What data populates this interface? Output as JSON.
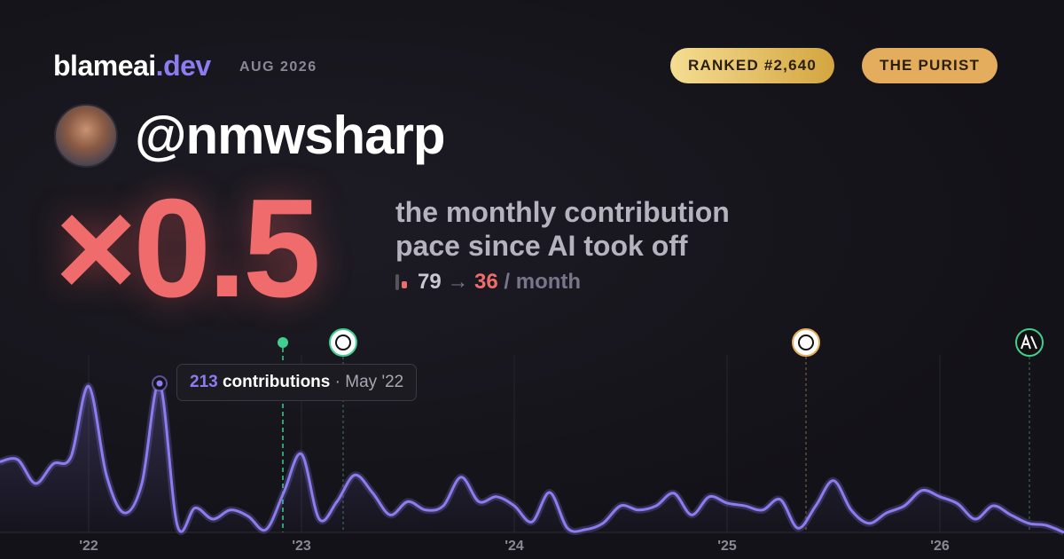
{
  "header": {
    "brand": "blameai",
    "brand_tld": ".dev",
    "date": "AUG 2026",
    "badges": [
      "RANKED #2,640",
      "THE PURIST"
    ],
    "handle": "@nmwsharp"
  },
  "stat": {
    "multiplier": "×0.5",
    "description": [
      "the monthly contribution",
      "pace since AI took off"
    ],
    "before": "79",
    "arrow": "→",
    "after": "36",
    "unit": "/ month"
  },
  "chart_data": {
    "type": "line",
    "color": "#8b7cf0",
    "categories": [
      null,
      null,
      null,
      null,
      null,
      "'22",
      null,
      null,
      null,
      null,
      null,
      null,
      null,
      null,
      null,
      null,
      null,
      "'23",
      null,
      null,
      null,
      null,
      null,
      null,
      null,
      null,
      null,
      null,
      null,
      "'24",
      null,
      null,
      null,
      null,
      null,
      null,
      null,
      null,
      null,
      null,
      null,
      "'25",
      null,
      null,
      null,
      null,
      null,
      null,
      null,
      null,
      null,
      null,
      null,
      "'26",
      null,
      null,
      null,
      null,
      null,
      null,
      null
    ],
    "values": [
      101,
      104,
      70,
      98,
      108,
      209,
      82,
      28,
      70,
      213,
      10,
      35,
      19,
      32,
      23,
      4,
      57,
      112,
      19,
      44,
      82,
      57,
      25,
      44,
      32,
      38,
      79,
      44,
      51,
      38,
      15,
      57,
      6,
      4,
      13,
      38,
      32,
      38,
      56,
      25,
      51,
      42,
      38,
      32,
      47,
      6,
      38,
      74,
      32,
      13,
      28,
      38,
      60,
      51,
      41,
      19,
      38,
      25,
      13,
      10,
      0
    ],
    "ylim": [
      0,
      250
    ],
    "tooltip": {
      "label": "contributions",
      "separator": "·",
      "date": "May '22"
    }
  }
}
